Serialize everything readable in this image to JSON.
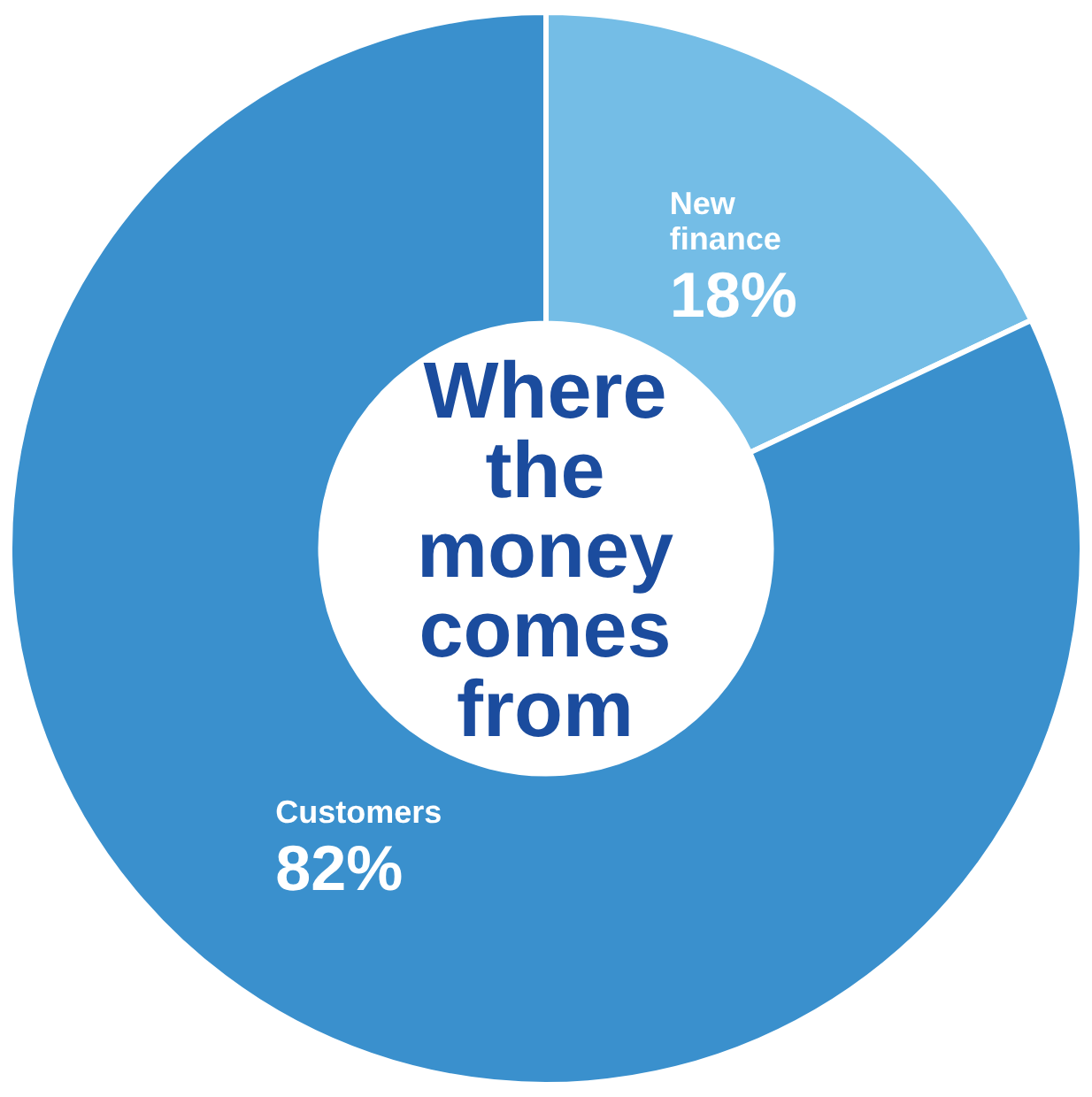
{
  "chart_data": {
    "type": "donut",
    "title": "Where the money comes from",
    "categories": [
      "New finance",
      "Customers"
    ],
    "values": [
      18,
      82
    ],
    "colors": [
      "#74bde6",
      "#3a90cd"
    ],
    "value_labels": [
      "18%",
      "82%"
    ],
    "legend": false
  }
}
